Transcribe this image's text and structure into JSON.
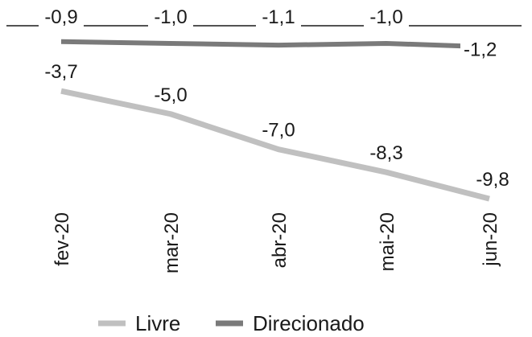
{
  "chart_data": {
    "type": "line",
    "title": "",
    "xlabel": "",
    "ylabel": "",
    "categories": [
      "fev-20",
      "mar-20",
      "abr-20",
      "mai-20",
      "jun-20"
    ],
    "series": [
      {
        "name": "Livre",
        "values": [
          -3.7,
          -5.0,
          -7.0,
          -8.3,
          -9.8
        ],
        "labels": [
          "-3,7",
          "-5,0",
          "-7,0",
          "-8,3",
          "-9,8"
        ],
        "color": "#c0c0c0"
      },
      {
        "name": "Direcionado",
        "values": [
          -0.9,
          -1.0,
          -1.1,
          -1.0,
          -1.2
        ],
        "labels": [
          "-0,9",
          "-1,0",
          "-1,1",
          "-1,0",
          "-1,2"
        ],
        "color": "#7a7a7a"
      }
    ],
    "ylim": [
      -10.3,
      0
    ],
    "zero_line": true,
    "grid": false,
    "legend_position": "bottom"
  }
}
